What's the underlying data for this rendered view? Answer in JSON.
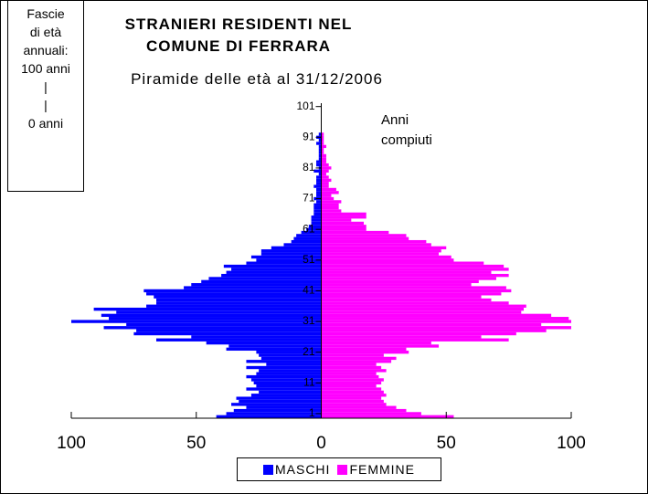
{
  "chart_data": {
    "type": "pyramid",
    "title": "STRANIERI RESIDENTI NEL COMUNE DI FERRARA",
    "subtitle": "Piramide delle età al 31/12/2006",
    "note_lines": [
      "Fascie",
      "di età",
      "annuali:",
      "100 anni",
      "|",
      "|",
      "0 anni"
    ],
    "annotation": "Anni compiuti",
    "y": [
      0,
      1,
      2,
      3,
      4,
      5,
      6,
      7,
      8,
      9,
      10,
      11,
      12,
      13,
      14,
      15,
      16,
      17,
      18,
      19,
      20,
      21,
      22,
      23,
      24,
      25,
      26,
      27,
      28,
      29,
      30,
      31,
      32,
      33,
      34,
      35,
      36,
      37,
      38,
      39,
      40,
      41,
      42,
      43,
      44,
      45,
      46,
      47,
      48,
      49,
      50,
      51,
      52,
      53,
      54,
      55,
      56,
      57,
      58,
      59,
      60,
      61,
      62,
      63,
      64,
      65,
      66,
      67,
      68,
      69,
      70,
      71,
      72,
      73,
      74,
      75,
      76,
      77,
      78,
      79,
      80,
      81,
      82,
      83,
      84,
      85,
      86,
      87,
      88,
      89,
      90,
      91,
      92,
      93,
      94,
      95,
      96,
      97,
      98,
      99,
      100,
      101
    ],
    "ylim": [
      -0.5,
      101.5
    ],
    "yticks": [
      1,
      11,
      21,
      31,
      41,
      51,
      61,
      71,
      81,
      91,
      101
    ],
    "xlim": [
      -100,
      100
    ],
    "xticks": [
      {
        "value": -100,
        "label": "100"
      },
      {
        "value": -50,
        "label": "50"
      },
      0,
      50,
      100
    ],
    "series": [
      {
        "name": "MASCHI",
        "color": "#0000ff",
        "side": "left",
        "values": [
          42,
          38,
          35,
          30,
          36,
          33,
          34,
          28,
          25,
          30,
          26,
          27,
          28,
          30,
          26,
          25,
          30,
          22,
          30,
          24,
          25,
          26,
          38,
          37,
          46,
          66,
          52,
          75,
          74,
          87,
          78,
          100,
          85,
          88,
          82,
          91,
          70,
          66,
          66,
          67,
          70,
          71,
          55,
          52,
          48,
          45,
          40,
          38,
          36,
          39,
          30,
          26,
          28,
          24,
          24,
          20,
          15,
          12,
          11,
          10,
          8,
          6,
          5,
          4,
          4,
          4,
          3,
          3,
          3,
          3,
          2,
          3,
          2,
          2,
          2,
          3,
          2,
          2,
          2,
          1,
          3,
          1,
          2,
          2,
          1,
          1,
          1,
          1,
          1,
          2,
          1,
          2,
          1,
          0,
          0,
          0,
          0,
          0,
          0,
          0,
          0,
          0
        ]
      },
      {
        "name": "FEMMINE",
        "color": "#ff00ff",
        "side": "right",
        "values": [
          53,
          40,
          34,
          30,
          26,
          25,
          24,
          26,
          25,
          24,
          22,
          24,
          25,
          23,
          22,
          26,
          24,
          22,
          28,
          30,
          25,
          35,
          34,
          47,
          44,
          75,
          64,
          78,
          90,
          100,
          88,
          100,
          99,
          92,
          80,
          81,
          82,
          75,
          68,
          64,
          72,
          76,
          74,
          60,
          63,
          70,
          75,
          68,
          75,
          73,
          65,
          53,
          52,
          47,
          48,
          50,
          44,
          42,
          35,
          34,
          27,
          18,
          18,
          17,
          12,
          18,
          18,
          8,
          7,
          7,
          8,
          5,
          4,
          7,
          6,
          3,
          3,
          4,
          3,
          2,
          3,
          4,
          3,
          2,
          2,
          2,
          1,
          1,
          2,
          1,
          1,
          1,
          1,
          0,
          0,
          0,
          0,
          0,
          0,
          0,
          0,
          0
        ]
      }
    ]
  }
}
